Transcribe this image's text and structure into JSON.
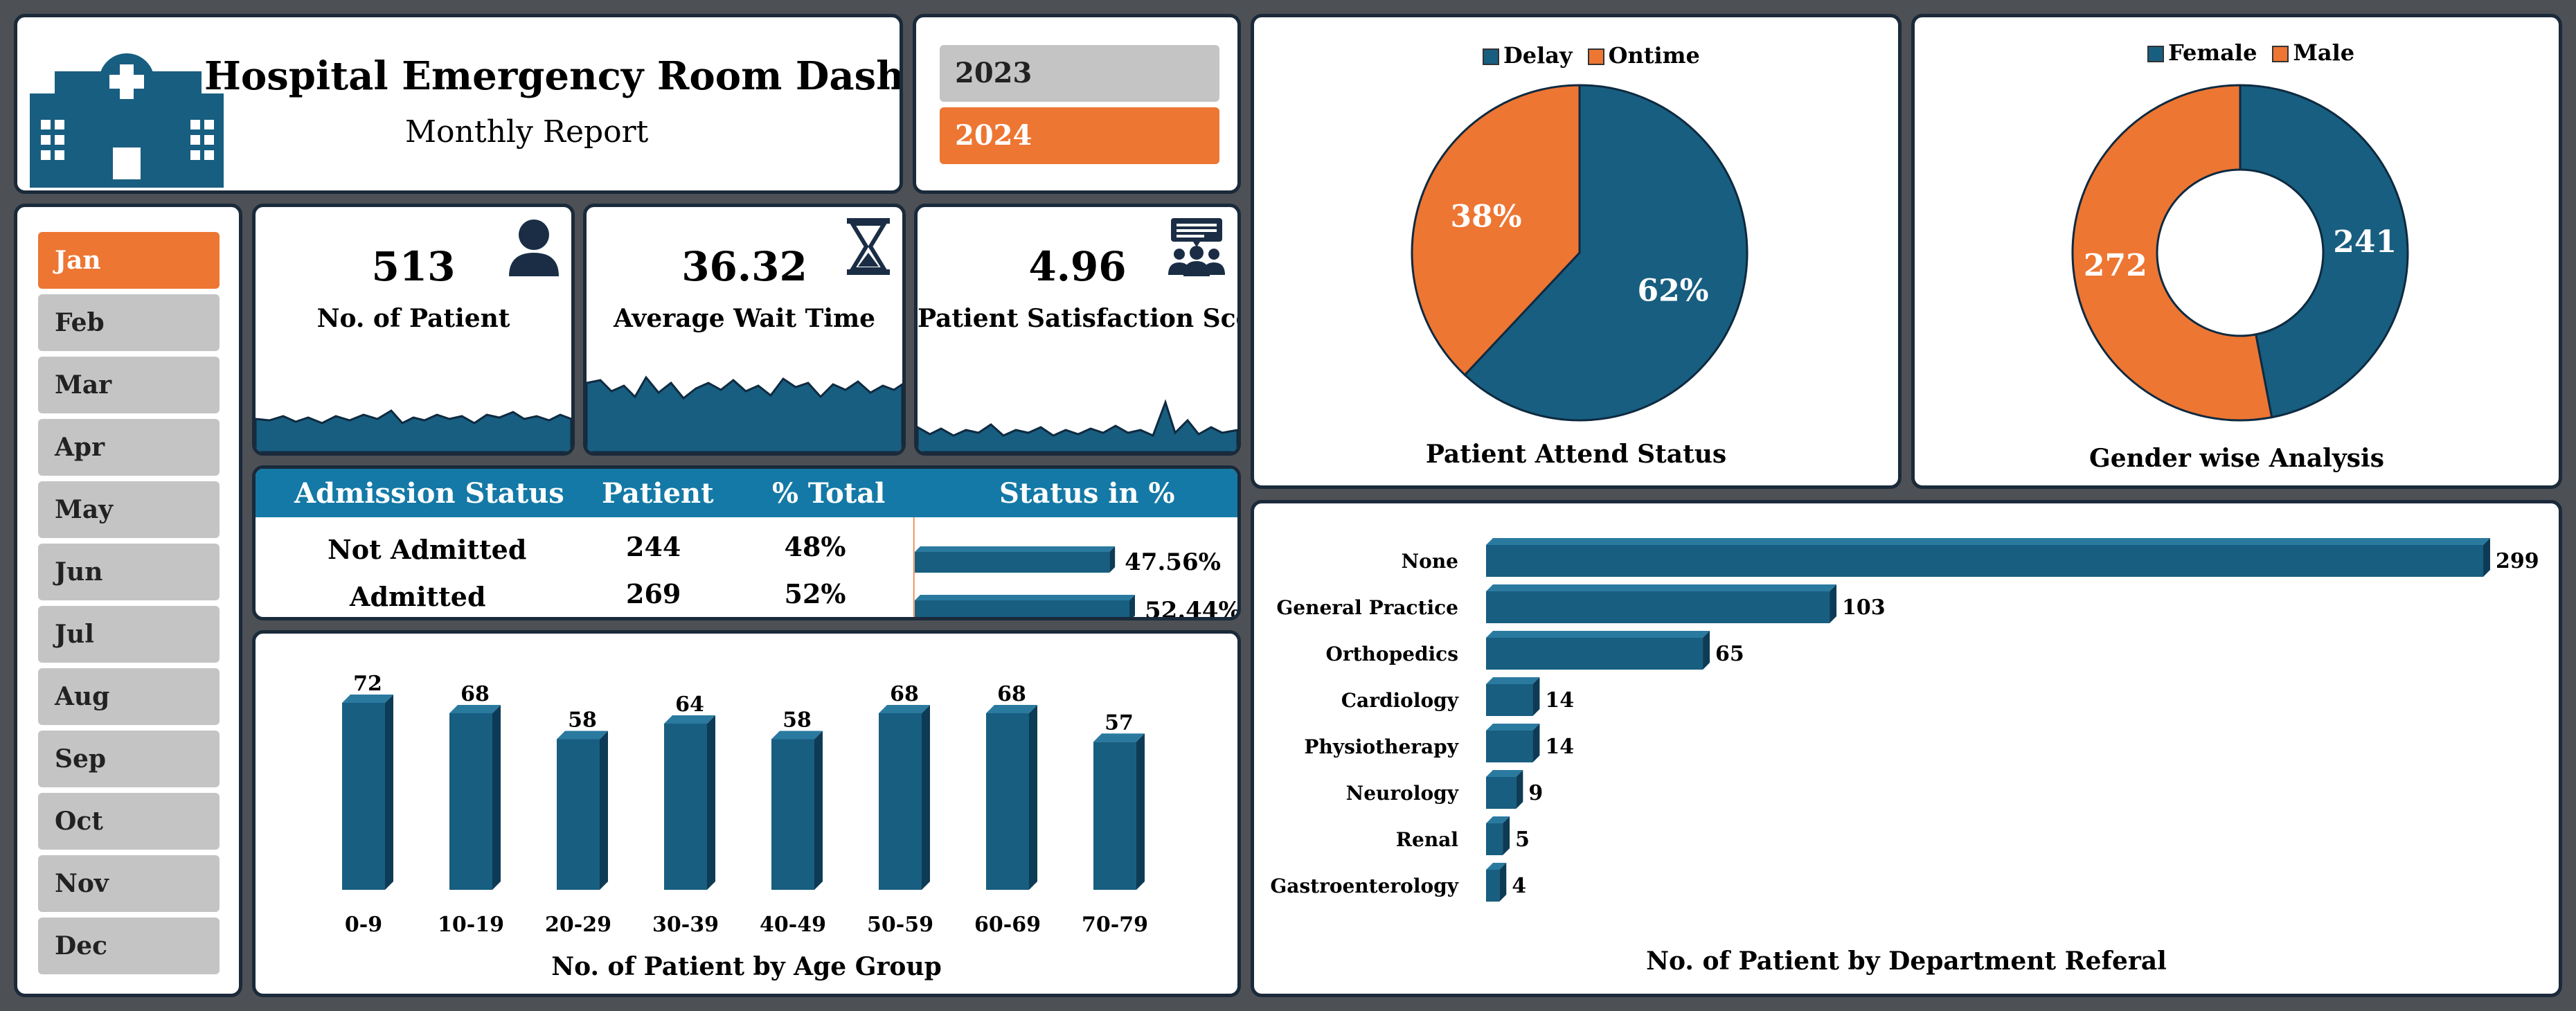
{
  "header": {
    "title": "Hospital Emergency Room Dashboard",
    "subtitle": "Monthly Report",
    "icon": "hospital-building-icon"
  },
  "years": [
    {
      "label": "2023",
      "selected": false
    },
    {
      "label": "2024",
      "selected": true
    }
  ],
  "months": [
    "Jan",
    "Feb",
    "Mar",
    "Apr",
    "May",
    "Jun",
    "Jul",
    "Aug",
    "Sep",
    "Oct",
    "Nov",
    "Dec"
  ],
  "selected_month": "Jan",
  "kpis": {
    "patients": {
      "value": "513",
      "label": "No. of Patient",
      "icon": "patient-icon"
    },
    "wait": {
      "value": "36.32",
      "label": "Average Wait Time",
      "icon": "hourglass-icon"
    },
    "satisfaction": {
      "value": "4.96",
      "label": "Patient Satisfaction Score",
      "icon": "feedback-group-icon"
    }
  },
  "admission": {
    "headers": [
      "Admission Status",
      "Patient",
      "% Total",
      "Status in %"
    ],
    "rows": [
      {
        "status": "Not Admitted",
        "patient": "244",
        "pct": "48%",
        "bar_label": "47.56%",
        "bar_value": 47.56
      },
      {
        "status": "Admitted",
        "patient": "269",
        "pct": "52%",
        "bar_label": "52.44%",
        "bar_value": 52.44
      }
    ]
  },
  "colors": {
    "primary": "#185e80",
    "accent": "#ed7633",
    "header_blue": "#1479a6",
    "panel_border": "#1a2a3a",
    "background": "#4d5055",
    "inactive": "#c4c4c4"
  },
  "charts": {
    "attend": {
      "caption": "Patient Attend Status",
      "legend": [
        {
          "name": "Delay",
          "color": "#185e80"
        },
        {
          "name": "Ontime",
          "color": "#ed7633"
        }
      ],
      "labels": {
        "delay": "62%",
        "ontime": "38%"
      }
    },
    "gender": {
      "caption": "Gender wise Analysis",
      "legend": [
        {
          "name": "Female",
          "color": "#185e80"
        },
        {
          "name": "Male",
          "color": "#ed7633"
        }
      ],
      "labels": {
        "female": "241",
        "male": "272"
      }
    },
    "age": {
      "caption": "No. of Patient by Age Group"
    },
    "dept": {
      "caption": "No. of Patient by Department Referal"
    }
  },
  "chart_data": [
    {
      "type": "pie",
      "title": "Patient Attend Status",
      "categories": [
        "Delay",
        "Ontime"
      ],
      "values": [
        62,
        38
      ],
      "value_labels": [
        "62%",
        "38%"
      ],
      "legend": "top"
    },
    {
      "type": "pie",
      "title": "Gender wise Analysis",
      "style": "donut",
      "categories": [
        "Female",
        "Male"
      ],
      "values": [
        241,
        272
      ],
      "legend": "top"
    },
    {
      "type": "bar",
      "title": "No. of Patient by Age Group",
      "categories": [
        "0-9",
        "10-19",
        "20-29",
        "30-39",
        "40-49",
        "50-59",
        "60-69",
        "70-79"
      ],
      "values": [
        72,
        68,
        58,
        64,
        58,
        68,
        68,
        57
      ],
      "grid": false
    },
    {
      "type": "bar",
      "orientation": "horizontal",
      "title": "No. of Patient by Department Referal",
      "categories": [
        "None",
        "General Practice",
        "Orthopedics",
        "Cardiology",
        "Physiotherapy",
        "Neurology",
        "Renal",
        "Gastroenterology"
      ],
      "values": [
        299,
        103,
        65,
        14,
        14,
        9,
        5,
        4
      ],
      "grid": false
    },
    {
      "type": "bar",
      "orientation": "horizontal",
      "title": "Status in %",
      "categories": [
        "Not Admitted",
        "Admitted"
      ],
      "values": [
        47.56,
        52.44
      ],
      "value_labels": [
        "47.56%",
        "52.44%"
      ]
    }
  ]
}
